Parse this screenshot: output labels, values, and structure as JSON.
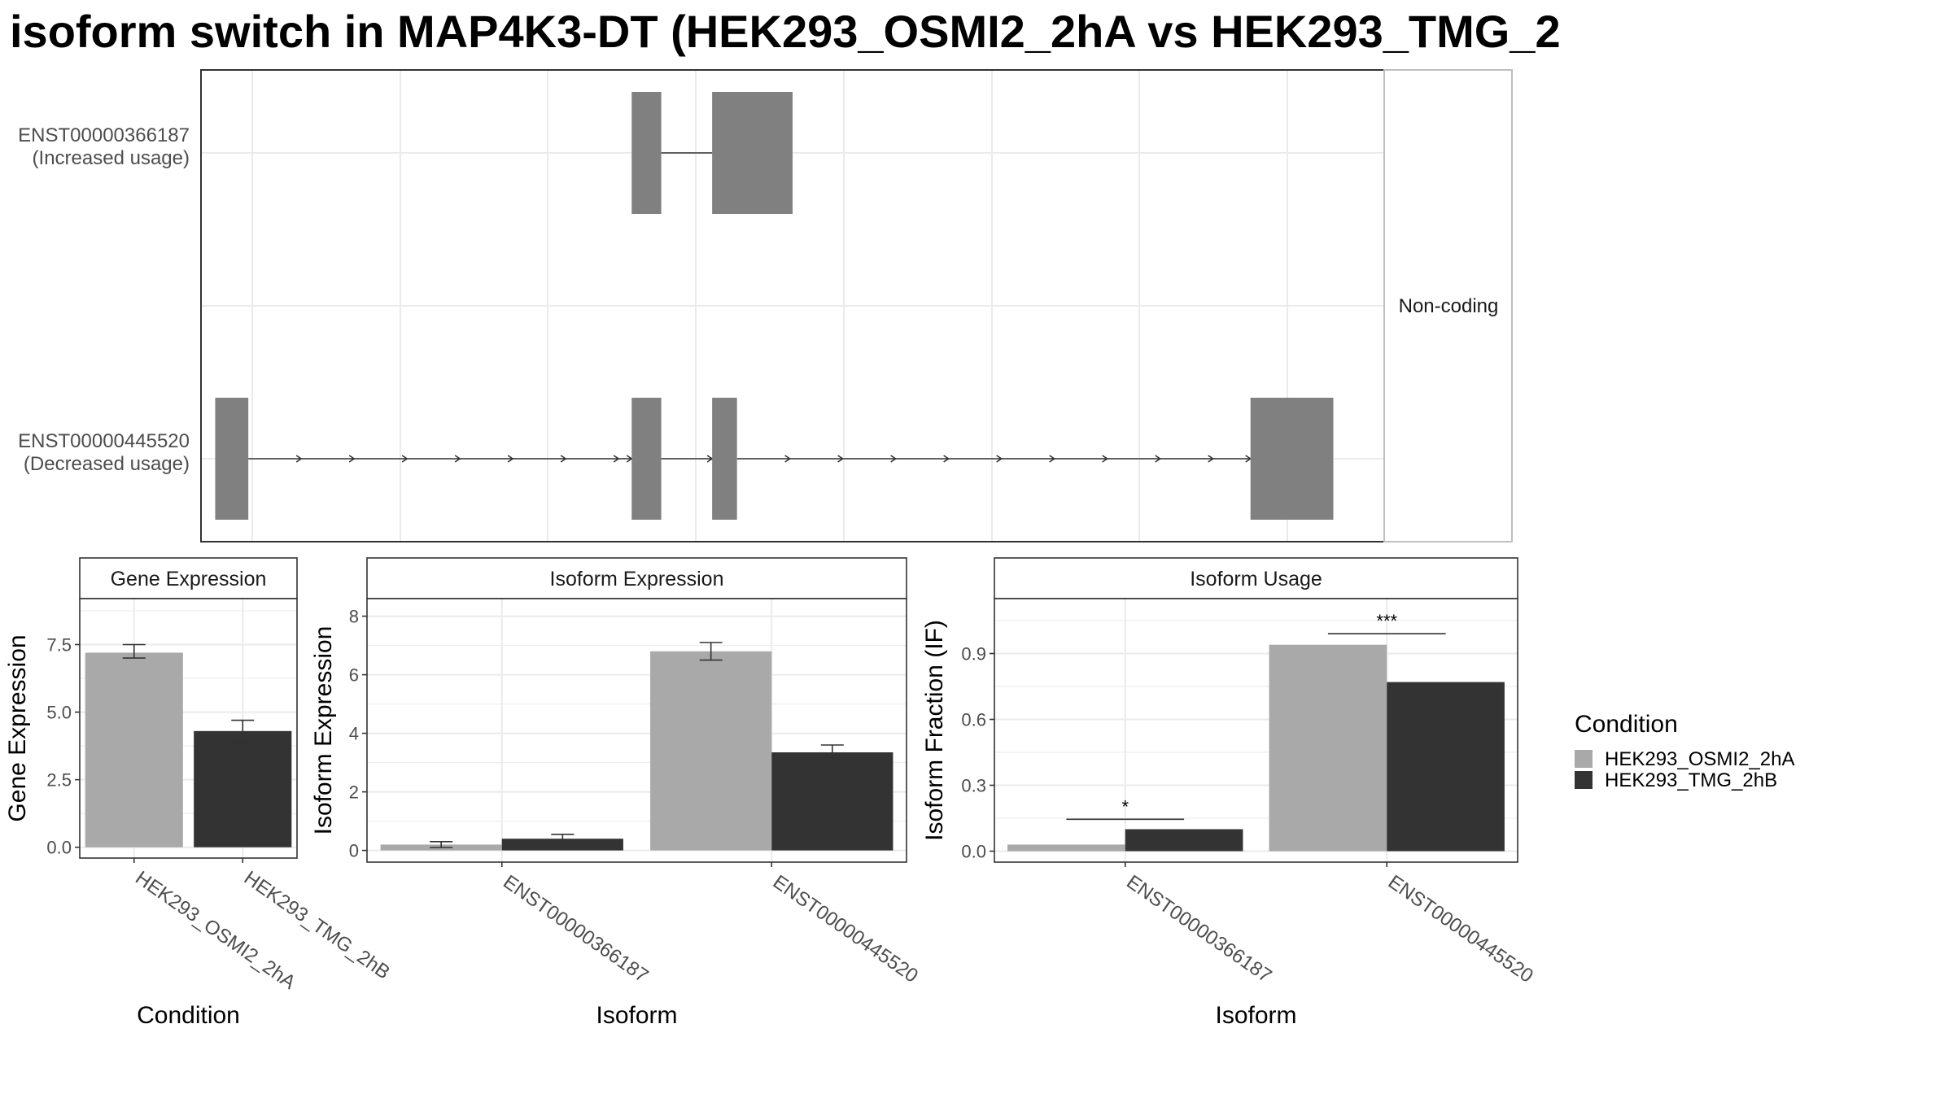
{
  "page_title": "isoform switch in MAP4K3-DT (HEK293_OSMI2_2hA vs HEK293_TMG_2",
  "colors": {
    "condition_a": "#A9A9A9",
    "condition_b": "#333333",
    "exon": "#808080",
    "grid": "#EBEBEB",
    "panel_border": "#333333",
    "strip_bg": "#FFFFFF",
    "text": "#000000",
    "axis_text": "#4D4D4D"
  },
  "chart_data": [
    {
      "id": "structure",
      "type": "transcript-structure",
      "facet_label": "Non-coding",
      "x_range": [
        0,
        100
      ],
      "grid": true,
      "tracks": [
        {
          "name": "ENST00000366187",
          "subtitle": "(Increased usage)",
          "exons": [
            [
              36.4,
              38.9
            ],
            [
              43.2,
              50.0
            ]
          ],
          "intron_arrows": false
        },
        {
          "name": "ENST00000445520",
          "subtitle": "(Decreased usage)",
          "exons": [
            [
              1.2,
              4.0
            ],
            [
              36.4,
              38.9
            ],
            [
              43.2,
              45.3
            ],
            [
              88.7,
              95.7
            ]
          ],
          "intron_arrows": true
        }
      ]
    },
    {
      "id": "gene-expression",
      "type": "bar",
      "facet_label": "Gene Expression",
      "xlabel": "Condition",
      "ylabel": "Gene Expression",
      "ylim": [
        -0.4,
        9.2
      ],
      "yticks": [
        0.0,
        2.5,
        5.0,
        7.5
      ],
      "ytick_labels": [
        "0.0",
        "2.5",
        "5.0",
        "7.5"
      ],
      "categories": [
        "HEK293_OSMI2_2hA",
        "HEK293_TMG_2hB"
      ],
      "values": [
        7.2,
        4.3
      ],
      "error": [
        [
          7.0,
          7.5
        ],
        [
          3.9,
          4.7
        ]
      ]
    },
    {
      "id": "isoform-expression",
      "type": "bar",
      "facet_label": "Isoform Expression",
      "xlabel": "Isoform",
      "ylabel": "Isoform Expression",
      "ylim": [
        -0.4,
        8.6
      ],
      "yticks": [
        0,
        2,
        4,
        6,
        8
      ],
      "ytick_labels": [
        "0",
        "2",
        "4",
        "6",
        "8"
      ],
      "categories": [
        "ENST00000366187",
        "ENST00000445520"
      ],
      "series": [
        {
          "name": "HEK293_OSMI2_2hA",
          "values": [
            0.2,
            6.8
          ],
          "error": [
            [
              0.1,
              0.3
            ],
            [
              6.5,
              7.1
            ]
          ]
        },
        {
          "name": "HEK293_TMG_2hB",
          "values": [
            0.4,
            3.35
          ],
          "error": [
            [
              0.3,
              0.55
            ],
            [
              3.15,
              3.6
            ]
          ]
        }
      ]
    },
    {
      "id": "isoform-usage",
      "type": "bar",
      "facet_label": "Isoform Usage",
      "xlabel": "Isoform",
      "ylabel": "Isoform Fraction (IF)",
      "ylim": [
        -0.05,
        1.15
      ],
      "yticks": [
        0.0,
        0.3,
        0.6,
        0.9
      ],
      "ytick_labels": [
        "0.0",
        "0.3",
        "0.6",
        "0.9"
      ],
      "categories": [
        "ENST00000366187",
        "ENST00000445520"
      ],
      "series": [
        {
          "name": "HEK293_OSMI2_2hA",
          "values": [
            0.03,
            0.94
          ]
        },
        {
          "name": "HEK293_TMG_2hB",
          "values": [
            0.1,
            0.77
          ]
        }
      ],
      "significance": [
        {
          "label": "*",
          "y": 0.145
        },
        {
          "label": "***",
          "y": 0.99
        }
      ]
    }
  ],
  "legend": {
    "title": "Condition",
    "placement": "right",
    "items": [
      "HEK293_OSMI2_2hA",
      "HEK293_TMG_2hB"
    ]
  }
}
